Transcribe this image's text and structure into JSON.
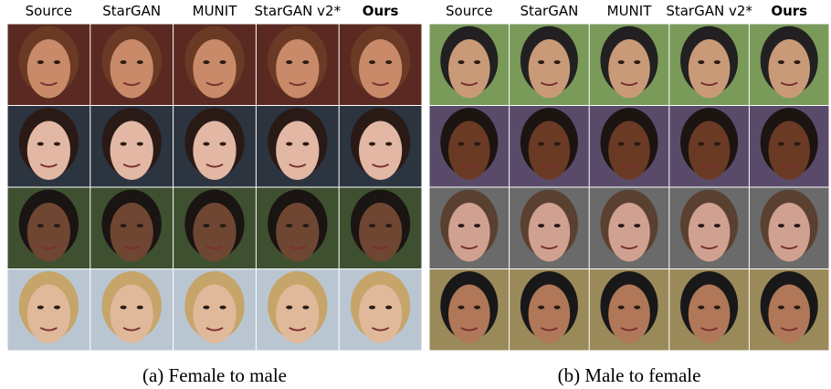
{
  "panels": [
    {
      "columns": [
        "Source",
        "StarGAN",
        "MUNIT",
        "StarGAN v2*",
        "Ours"
      ],
      "caption": "(a) Female to male"
    },
    {
      "columns": [
        "Source",
        "StarGAN",
        "MUNIT",
        "StarGAN v2*",
        "Ours"
      ],
      "caption": "(b) Male to female"
    }
  ]
}
